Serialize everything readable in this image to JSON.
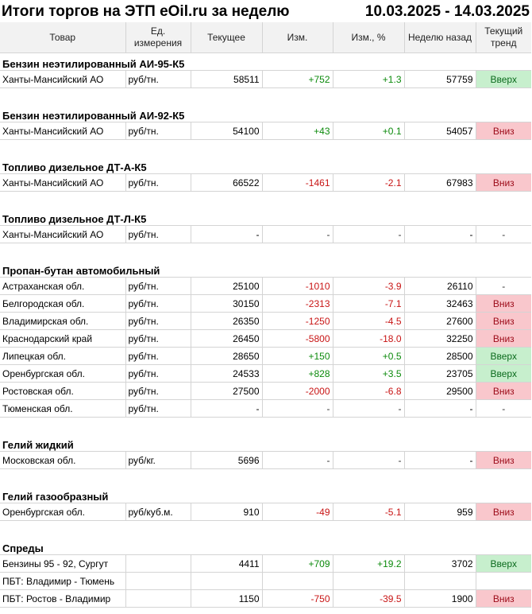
{
  "title": "Итоги торгов на ЭТП eOil.ru за неделю",
  "period": "10.03.2025 - 14.03.2025",
  "headers": [
    "Товар",
    "Ед. измерения",
    "Текущее",
    "Изм.",
    "Изм., %",
    "Неделю назад",
    "Текущий тренд"
  ],
  "colors": {
    "positive": "#0c8a0c",
    "negative": "#c81414",
    "trend_up_bg": "#c7efcd",
    "trend_down_bg": "#f9c7cc"
  },
  "sections": [
    {
      "name": "Бензин неэтилированный АИ-95-К5",
      "rows": [
        {
          "region": "Ханты-Мансийский АО",
          "unit": "руб/тн.",
          "current": "58511",
          "change": "+752",
          "change_pct": "+1.3",
          "week_ago": "57759",
          "trend": "Вверх"
        }
      ]
    },
    {
      "name": "Бензин неэтилированный АИ-92-К5",
      "rows": [
        {
          "region": "Ханты-Мансийский АО",
          "unit": "руб/тн.",
          "current": "54100",
          "change": "+43",
          "change_pct": "+0.1",
          "week_ago": "54057",
          "trend": "Вниз"
        }
      ]
    },
    {
      "name": "Топливо дизельное ДТ-А-К5",
      "rows": [
        {
          "region": "Ханты-Мансийский АО",
          "unit": "руб/тн.",
          "current": "66522",
          "change": "-1461",
          "change_pct": "-2.1",
          "week_ago": "67983",
          "trend": "Вниз"
        }
      ]
    },
    {
      "name": "Топливо дизельное ДТ-Л-К5",
      "rows": [
        {
          "region": "Ханты-Мансийский АО",
          "unit": "руб/тн.",
          "current": "-",
          "change": "-",
          "change_pct": "-",
          "week_ago": "-",
          "trend": "-"
        }
      ]
    },
    {
      "name": "Пропан-бутан автомобильный",
      "rows": [
        {
          "region": "Астраханская обл.",
          "unit": "руб/тн.",
          "current": "25100",
          "change": "-1010",
          "change_pct": "-3.9",
          "week_ago": "26110",
          "trend": "-"
        },
        {
          "region": "Белгородская обл.",
          "unit": "руб/тн.",
          "current": "30150",
          "change": "-2313",
          "change_pct": "-7.1",
          "week_ago": "32463",
          "trend": "Вниз"
        },
        {
          "region": "Владимирская обл.",
          "unit": "руб/тн.",
          "current": "26350",
          "change": "-1250",
          "change_pct": "-4.5",
          "week_ago": "27600",
          "trend": "Вниз"
        },
        {
          "region": "Краснодарский край",
          "unit": "руб/тн.",
          "current": "26450",
          "change": "-5800",
          "change_pct": "-18.0",
          "week_ago": "32250",
          "trend": "Вниз"
        },
        {
          "region": "Липецкая обл.",
          "unit": "руб/тн.",
          "current": "28650",
          "change": "+150",
          "change_pct": "+0.5",
          "week_ago": "28500",
          "trend": "Вверх"
        },
        {
          "region": "Оренбургская обл.",
          "unit": "руб/тн.",
          "current": "24533",
          "change": "+828",
          "change_pct": "+3.5",
          "week_ago": "23705",
          "trend": "Вверх"
        },
        {
          "region": "Ростовская обл.",
          "unit": "руб/тн.",
          "current": "27500",
          "change": "-2000",
          "change_pct": "-6.8",
          "week_ago": "29500",
          "trend": "Вниз"
        },
        {
          "region": "Тюменская обл.",
          "unit": "руб/тн.",
          "current": "-",
          "change": "-",
          "change_pct": "-",
          "week_ago": "-",
          "trend": "-"
        }
      ]
    },
    {
      "name": "Гелий жидкий",
      "rows": [
        {
          "region": "Московская обл.",
          "unit": "руб/кг.",
          "current": "5696",
          "change": "-",
          "change_pct": "-",
          "week_ago": "-",
          "trend": "Вниз"
        }
      ]
    },
    {
      "name": "Гелий газообразный",
      "rows": [
        {
          "region": "Оренбургская обл.",
          "unit": "руб/куб.м.",
          "current": "910",
          "change": "-49",
          "change_pct": "-5.1",
          "week_ago": "959",
          "trend": "Вниз"
        }
      ]
    },
    {
      "name": "Спреды",
      "rows": [
        {
          "region": "Бензины 95 - 92, Сургут",
          "unit": "",
          "current": "4411",
          "change": "+709",
          "change_pct": "+19.2",
          "week_ago": "3702",
          "trend": "Вверх"
        },
        {
          "region": "ПБТ: Владимир - Тюмень",
          "unit": "",
          "current": "",
          "change": "",
          "change_pct": "",
          "week_ago": "",
          "trend": ""
        },
        {
          "region": "ПБТ: Ростов - Владимир",
          "unit": "",
          "current": "1150",
          "change": "-750",
          "change_pct": "-39.5",
          "week_ago": "1900",
          "trend": "Вниз"
        }
      ]
    }
  ]
}
